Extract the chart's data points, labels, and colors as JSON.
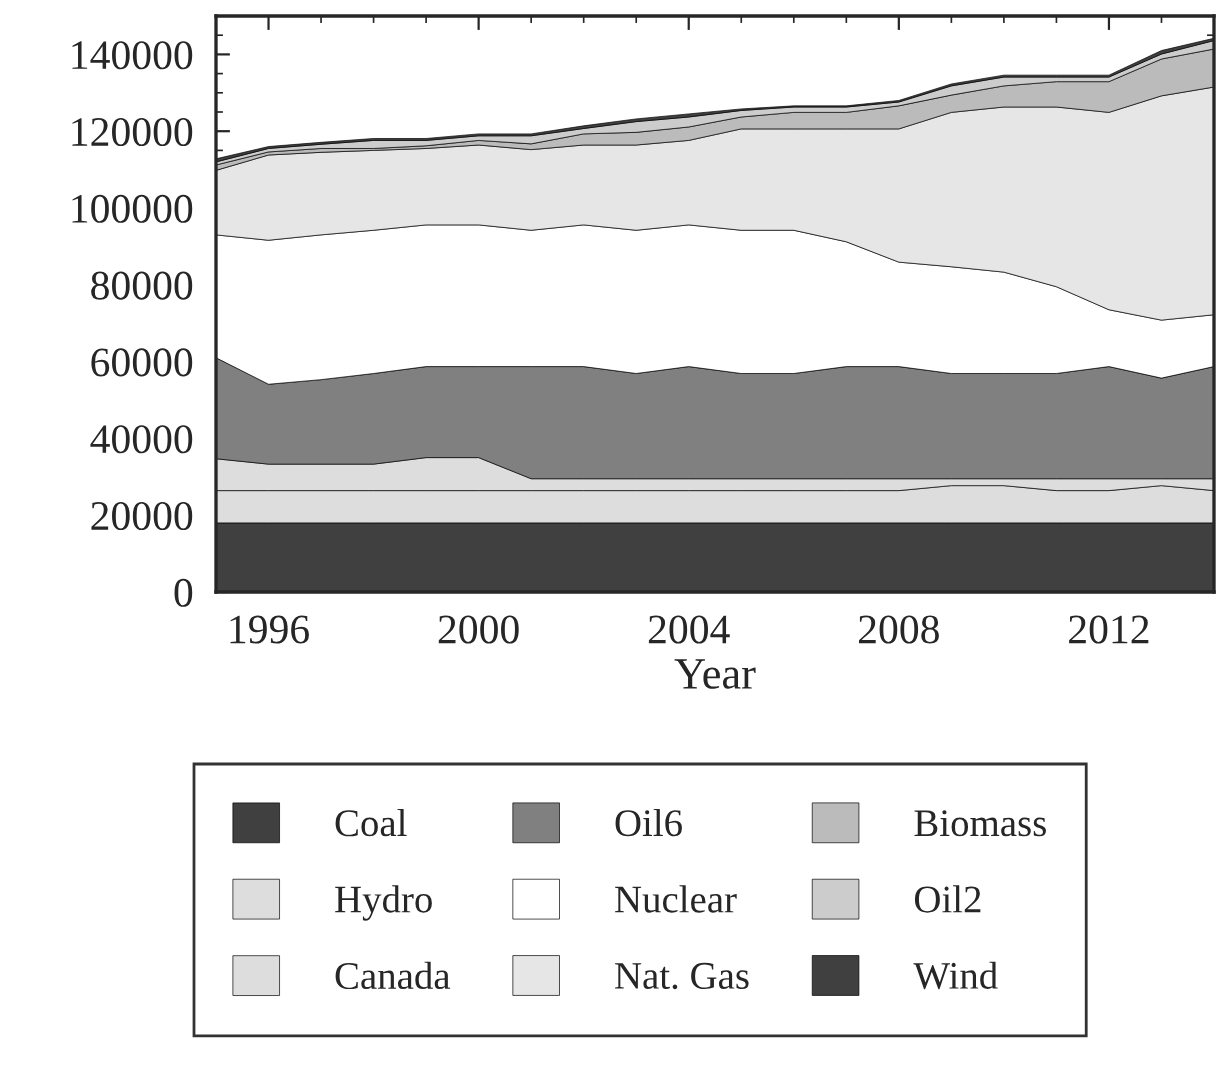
{
  "chart_data": {
    "type": "area",
    "stacked": true,
    "xlabel": "Year",
    "x": [
      1995,
      1996,
      1997,
      1998,
      1999,
      2000,
      2001,
      2002,
      2003,
      2004,
      2005,
      2006,
      2007,
      2008,
      2009,
      2010,
      2011,
      2012,
      2013,
      2014
    ],
    "xlim": [
      1995,
      2014
    ],
    "xticks": [
      1996,
      2000,
      2004,
      2008,
      2012
    ],
    "ylim": [
      0,
      150000
    ],
    "yticks": [
      0,
      20000,
      40000,
      60000,
      80000,
      100000,
      120000,
      140000
    ],
    "grid": false,
    "legend": "bottom",
    "series": [
      {
        "name": "Coal",
        "color": "#404040",
        "values": [
          18000,
          18000,
          18000,
          18000,
          18000,
          18000,
          18000,
          18000,
          18000,
          18000,
          18000,
          18000,
          18000,
          18000,
          18000,
          18000,
          18000,
          18000,
          18000,
          18000
        ]
      },
      {
        "name": "Hydro",
        "color": "#dddddd",
        "values": [
          8400,
          8400,
          8400,
          8400,
          8400,
          8400,
          8400,
          8400,
          8400,
          8400,
          8400,
          8400,
          8400,
          8400,
          9700,
          9700,
          8400,
          8400,
          9700,
          8400
        ]
      },
      {
        "name": "Canada",
        "color": "#dddddd",
        "values": [
          8300,
          6900,
          6900,
          6900,
          8600,
          8600,
          3100,
          3100,
          3100,
          3100,
          3100,
          3100,
          3100,
          3100,
          1800,
          1800,
          3100,
          3100,
          1800,
          3100
        ]
      },
      {
        "name": "Oil6",
        "color": "#808080",
        "values": [
          26300,
          20800,
          22000,
          23600,
          23700,
          23700,
          29200,
          29200,
          27400,
          29200,
          27400,
          27400,
          29200,
          29200,
          27400,
          27400,
          27400,
          29200,
          26200,
          29200
        ]
      },
      {
        "name": "Nuclear",
        "color": "#ffffff",
        "values": [
          32000,
          37500,
          37700,
          37300,
          36900,
          36900,
          35500,
          36900,
          37300,
          36900,
          37300,
          37300,
          32500,
          27200,
          27800,
          26400,
          22600,
          14800,
          15100,
          13500
        ]
      },
      {
        "name": "Nat. Gas",
        "color": "#e6e6e6",
        "values": [
          16800,
          22200,
          21500,
          20800,
          19900,
          20800,
          21000,
          20800,
          22200,
          22000,
          26400,
          26400,
          29400,
          34700,
          40200,
          43000,
          46800,
          51400,
          58400,
          59300
        ]
      },
      {
        "name": "Biomass",
        "color": "#bbbbbb",
        "values": [
          1400,
          800,
          1000,
          500,
          700,
          1200,
          1500,
          2900,
          3300,
          3500,
          3100,
          4300,
          4300,
          6000,
          4500,
          5500,
          6600,
          8000,
          9600,
          9900
        ]
      },
      {
        "name": "Oil2",
        "color": "#cccccc",
        "values": [
          800,
          900,
          1100,
          2100,
          1400,
          1200,
          2100,
          1400,
          2800,
          2600,
          1700,
          1400,
          1400,
          1000,
          2400,
          2300,
          1200,
          1200,
          1300,
          2200
        ]
      },
      {
        "name": "Wind",
        "color": "#404040",
        "values": [
          800,
          500,
          500,
          500,
          500,
          500,
          500,
          700,
          700,
          800,
          400,
          300,
          300,
          400,
          500,
          500,
          500,
          500,
          900,
          600
        ]
      }
    ]
  }
}
